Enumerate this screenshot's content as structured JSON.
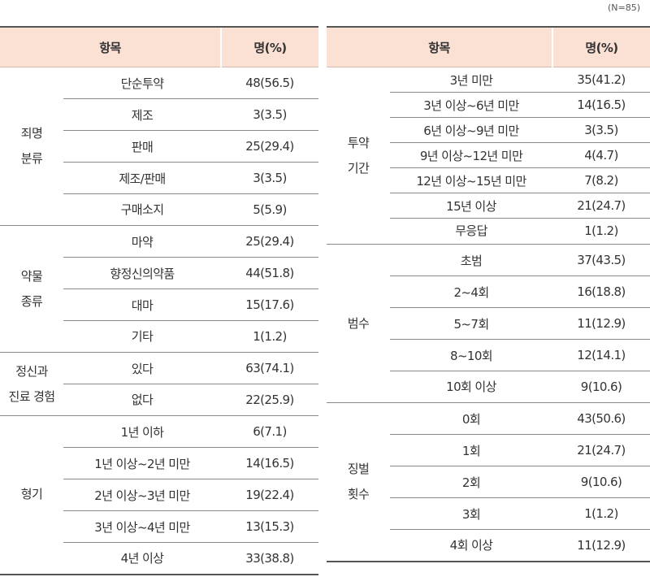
{
  "note": "(N=85)",
  "header": {
    "item": "항목",
    "count": "명(%)"
  },
  "left": {
    "groups": [
      {
        "label": [
          "죄명",
          "분류"
        ],
        "rows": [
          {
            "item": "단순투약",
            "value": "48(56.5)"
          },
          {
            "item": "제조",
            "value": "3(3.5)"
          },
          {
            "item": "판매",
            "value": "25(29.4)"
          },
          {
            "item": "제조/판매",
            "value": "3(3.5)"
          },
          {
            "item": "구매소지",
            "value": "5(5.9)"
          }
        ]
      },
      {
        "label": [
          "약물",
          "종류"
        ],
        "rows": [
          {
            "item": "마약",
            "value": "25(29.4)"
          },
          {
            "item": "향정신의약품",
            "value": "44(51.8)"
          },
          {
            "item": "대마",
            "value": "15(17.6)"
          },
          {
            "item": "기타",
            "value": "1(1.2)"
          }
        ]
      },
      {
        "label": [
          "정신과",
          "진료 경험"
        ],
        "rows": [
          {
            "item": "있다",
            "value": "63(74.1)"
          },
          {
            "item": "없다",
            "value": "22(25.9)"
          }
        ]
      },
      {
        "label": [
          "형기"
        ],
        "rows": [
          {
            "item": "1년 이하",
            "value": "6(7.1)"
          },
          {
            "item": "1년 이상~2년 미만",
            "value": "14(16.5)"
          },
          {
            "item": "2년 이상~3년 미만",
            "value": "19(22.4)"
          },
          {
            "item": "3년 이상~4년 미만",
            "value": "13(15.3)"
          },
          {
            "item": "4년 이상",
            "value": "33(38.8)"
          }
        ]
      }
    ]
  },
  "right": {
    "groups": [
      {
        "label": [
          "투약",
          "기간"
        ],
        "rows": [
          {
            "item": "3년 미만",
            "value": "35(41.2)"
          },
          {
            "item": "3년 이상~6년 미만",
            "value": "14(16.5)"
          },
          {
            "item": "6년 이상~9년 미만",
            "value": "3(3.5)"
          },
          {
            "item": "9년 이상~12년 미만",
            "value": "4(4.7)"
          },
          {
            "item": "12년 이상~15년 미만",
            "value": "7(8.2)"
          },
          {
            "item": "15년 이상",
            "value": "21(24.7)"
          },
          {
            "item": "무응답",
            "value": "1(1.2)"
          }
        ]
      },
      {
        "label": [
          "범수"
        ],
        "rows": [
          {
            "item": "초범",
            "value": "37(43.5)"
          },
          {
            "item": "2~4회",
            "value": "16(18.8)"
          },
          {
            "item": "5~7회",
            "value": "11(12.9)"
          },
          {
            "item": "8~10회",
            "value": "12(14.1)"
          },
          {
            "item": "10회 이상",
            "value": "9(10.6)"
          }
        ]
      },
      {
        "label": [
          "징벌",
          "횟수"
        ],
        "rows": [
          {
            "item": "0회",
            "value": "43(50.6)"
          },
          {
            "item": "1회",
            "value": "21(24.7)"
          },
          {
            "item": "2회",
            "value": "9(10.6)"
          },
          {
            "item": "3회",
            "value": "1(1.2)"
          },
          {
            "item": "4회 이상",
            "value": "11(12.9)"
          }
        ]
      }
    ]
  }
}
